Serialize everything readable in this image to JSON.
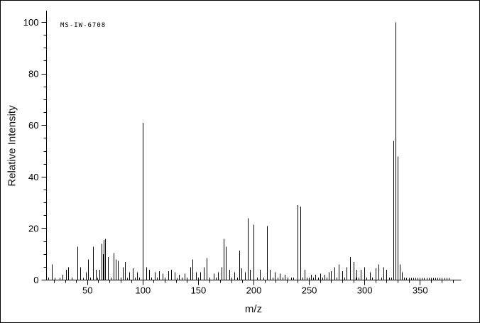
{
  "figure": {
    "background": "#ffffff",
    "line_color": "#000000",
    "text_color": "#000000"
  },
  "chart_data": {
    "type": "bar",
    "subtype": "mass-spectrum-stick-plot",
    "annotation": "MS-IW-6708",
    "xlabel": "m/z",
    "ylabel": "Relative Intensity",
    "xlim": [
      13,
      387
    ],
    "ylim": [
      0,
      100
    ],
    "x_major_ticks": [
      50,
      100,
      150,
      200,
      250,
      300,
      350
    ],
    "x_minor_step": 10,
    "y_major_ticks": [
      0,
      20,
      40,
      60,
      80,
      100
    ],
    "y_minor_step": 5,
    "grid": "off",
    "legend": "none",
    "peaks": [
      [
        15,
        1
      ],
      [
        18,
        6
      ],
      [
        21,
        0.8
      ],
      [
        25,
        0.8
      ],
      [
        28,
        2
      ],
      [
        31,
        4
      ],
      [
        33,
        5
      ],
      [
        36,
        1
      ],
      [
        41,
        13
      ],
      [
        44,
        5
      ],
      [
        46,
        0.8
      ],
      [
        49,
        3
      ],
      [
        51,
        8
      ],
      [
        53,
        1
      ],
      [
        55,
        13
      ],
      [
        58,
        4
      ],
      [
        59,
        0.8
      ],
      [
        61,
        4
      ],
      [
        63,
        14
      ],
      [
        64,
        10
      ],
      [
        65,
        15.5
      ],
      [
        66,
        16
      ],
      [
        69,
        9
      ],
      [
        71,
        1
      ],
      [
        74,
        10.5
      ],
      [
        76,
        8
      ],
      [
        78,
        7.5
      ],
      [
        80,
        1
      ],
      [
        82,
        5
      ],
      [
        84,
        7
      ],
      [
        86,
        0.8
      ],
      [
        88,
        3
      ],
      [
        91,
        4.5
      ],
      [
        93,
        1
      ],
      [
        95,
        3
      ],
      [
        97,
        1
      ],
      [
        100,
        61
      ],
      [
        103,
        5
      ],
      [
        106,
        4
      ],
      [
        108,
        1
      ],
      [
        111,
        3
      ],
      [
        113,
        1
      ],
      [
        115,
        3.5
      ],
      [
        118,
        2.5
      ],
      [
        120,
        1
      ],
      [
        123,
        3.5
      ],
      [
        126,
        4
      ],
      [
        129,
        3
      ],
      [
        131,
        0.8
      ],
      [
        133,
        2
      ],
      [
        135,
        1
      ],
      [
        138,
        2.5
      ],
      [
        140,
        1
      ],
      [
        143,
        5
      ],
      [
        145,
        8
      ],
      [
        148,
        3
      ],
      [
        150,
        1
      ],
      [
        152,
        3
      ],
      [
        155,
        5
      ],
      [
        158,
        8.5
      ],
      [
        160,
        1
      ],
      [
        164,
        2.5
      ],
      [
        166,
        1
      ],
      [
        168,
        3
      ],
      [
        171,
        5
      ],
      [
        173,
        16
      ],
      [
        175,
        13
      ],
      [
        178,
        4
      ],
      [
        180,
        1
      ],
      [
        183,
        3
      ],
      [
        185,
        1
      ],
      [
        187,
        11.5
      ],
      [
        189,
        4.5
      ],
      [
        192,
        3
      ],
      [
        195,
        24
      ],
      [
        197,
        4
      ],
      [
        200,
        21.5
      ],
      [
        203,
        1
      ],
      [
        206,
        4
      ],
      [
        209,
        1
      ],
      [
        212,
        21
      ],
      [
        215,
        4
      ],
      [
        217,
        1
      ],
      [
        219,
        3
      ],
      [
        222,
        1
      ],
      [
        224,
        2.5
      ],
      [
        226,
        1
      ],
      [
        228,
        2
      ],
      [
        231,
        1
      ],
      [
        234,
        1
      ],
      [
        236,
        1
      ],
      [
        240,
        29
      ],
      [
        242,
        28.5
      ],
      [
        244,
        1
      ],
      [
        246,
        4
      ],
      [
        248,
        1
      ],
      [
        250,
        1
      ],
      [
        252,
        2
      ],
      [
        254,
        1
      ],
      [
        256,
        2
      ],
      [
        258,
        1
      ],
      [
        260,
        2.5
      ],
      [
        262,
        1
      ],
      [
        264,
        2
      ],
      [
        266,
        1
      ],
      [
        268,
        3
      ],
      [
        270,
        3.5
      ],
      [
        273,
        5
      ],
      [
        275,
        1
      ],
      [
        277,
        6
      ],
      [
        280,
        3.5
      ],
      [
        282,
        1
      ],
      [
        284,
        5
      ],
      [
        287,
        9
      ],
      [
        290,
        7
      ],
      [
        292,
        1
      ],
      [
        293,
        4
      ],
      [
        295,
        1
      ],
      [
        297,
        4
      ],
      [
        300,
        5
      ],
      [
        302,
        1
      ],
      [
        305,
        3
      ],
      [
        307,
        1
      ],
      [
        310,
        4.5
      ],
      [
        313,
        6
      ],
      [
        315,
        1
      ],
      [
        317,
        5
      ],
      [
        320,
        4
      ],
      [
        322,
        1
      ],
      [
        324,
        1
      ],
      [
        326,
        54
      ],
      [
        328,
        100
      ],
      [
        330,
        48
      ],
      [
        332,
        6
      ],
      [
        334,
        3
      ],
      [
        336,
        1
      ],
      [
        338,
        0.8
      ],
      [
        340,
        0.8
      ],
      [
        342,
        0.8
      ],
      [
        344,
        0.8
      ],
      [
        346,
        0.8
      ],
      [
        348,
        0.8
      ],
      [
        350,
        0.8
      ],
      [
        352,
        0.8
      ],
      [
        354,
        0.8
      ],
      [
        356,
        0.8
      ],
      [
        358,
        0.8
      ],
      [
        360,
        0.8
      ],
      [
        362,
        0.8
      ],
      [
        364,
        0.8
      ],
      [
        366,
        0.8
      ],
      [
        368,
        0.8
      ],
      [
        370,
        0.8
      ],
      [
        372,
        0.8
      ],
      [
        374,
        0.8
      ],
      [
        376,
        0.8
      ]
    ]
  }
}
